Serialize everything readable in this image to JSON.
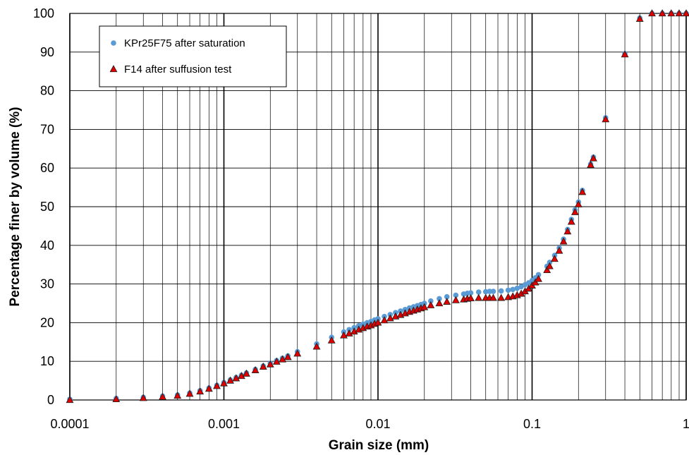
{
  "colors": {
    "series1": "#5b9bd5",
    "series2_fill": "#e00000",
    "series2_stroke": "#1f1f1f",
    "grid_major": "#000000",
    "grid_minor": "#000000"
  },
  "chart_data": {
    "type": "scatter",
    "xlabel": "Grain size (mm)",
    "ylabel": "Percentage finer by volume (%)",
    "x_scale": "log",
    "xlim": [
      0.0001,
      1
    ],
    "ylim": [
      0,
      100
    ],
    "x_ticks": [
      0.0001,
      0.001,
      0.01,
      0.1,
      1
    ],
    "x_tick_labels": [
      "0.0001",
      "0.001",
      "0.01",
      "0.1",
      "1"
    ],
    "y_ticks": [
      0,
      10,
      20,
      30,
      40,
      50,
      60,
      70,
      80,
      90,
      100
    ],
    "y_tick_labels": [
      "0",
      "10",
      "20",
      "30",
      "40",
      "50",
      "60",
      "70",
      "80",
      "90",
      "100"
    ],
    "grid": true,
    "legend_position": "top-left",
    "series": [
      {
        "name": "KPr25F75 after saturation",
        "marker": "circle",
        "points": [
          [
            0.0001,
            0.2
          ],
          [
            0.0002,
            0.4
          ],
          [
            0.0003,
            0.7
          ],
          [
            0.0004,
            1.0
          ],
          [
            0.0005,
            1.3
          ],
          [
            0.0006,
            1.8
          ],
          [
            0.0007,
            2.4
          ],
          [
            0.0008,
            3.1
          ],
          [
            0.0009,
            3.8
          ],
          [
            0.001,
            4.5
          ],
          [
            0.0011,
            5.2
          ],
          [
            0.0012,
            5.8
          ],
          [
            0.0013,
            6.4
          ],
          [
            0.0014,
            7.0
          ],
          [
            0.0016,
            7.9
          ],
          [
            0.0018,
            8.8
          ],
          [
            0.002,
            9.5
          ],
          [
            0.0022,
            10.2
          ],
          [
            0.0024,
            10.8
          ],
          [
            0.0026,
            11.4
          ],
          [
            0.003,
            12.5
          ],
          [
            0.004,
            14.5
          ],
          [
            0.005,
            16.2
          ],
          [
            0.006,
            17.6
          ],
          [
            0.0065,
            18.2
          ],
          [
            0.007,
            18.7
          ],
          [
            0.0075,
            19.2
          ],
          [
            0.008,
            19.6
          ],
          [
            0.0085,
            20.0
          ],
          [
            0.009,
            20.3
          ],
          [
            0.0095,
            20.7
          ],
          [
            0.01,
            21.0
          ],
          [
            0.011,
            21.6
          ],
          [
            0.012,
            22.1
          ],
          [
            0.013,
            22.6
          ],
          [
            0.014,
            23.0
          ],
          [
            0.015,
            23.4
          ],
          [
            0.016,
            23.8
          ],
          [
            0.017,
            24.1
          ],
          [
            0.018,
            24.4
          ],
          [
            0.019,
            24.7
          ],
          [
            0.02,
            25.0
          ],
          [
            0.022,
            25.6
          ],
          [
            0.025,
            26.2
          ],
          [
            0.028,
            26.7
          ],
          [
            0.032,
            27.1
          ],
          [
            0.036,
            27.4
          ],
          [
            0.038,
            27.6
          ],
          [
            0.04,
            27.7
          ],
          [
            0.045,
            27.9
          ],
          [
            0.05,
            28.0
          ],
          [
            0.053,
            28.1
          ],
          [
            0.056,
            28.1
          ],
          [
            0.063,
            28.2
          ],
          [
            0.07,
            28.4
          ],
          [
            0.075,
            28.6
          ],
          [
            0.08,
            28.9
          ],
          [
            0.085,
            29.3
          ],
          [
            0.09,
            29.8
          ],
          [
            0.095,
            30.3
          ],
          [
            0.1,
            30.9
          ],
          [
            0.105,
            31.6
          ],
          [
            0.11,
            32.4
          ],
          [
            0.125,
            34.6
          ],
          [
            0.13,
            35.6
          ],
          [
            0.14,
            37.4
          ],
          [
            0.15,
            39.3
          ],
          [
            0.16,
            41.6
          ],
          [
            0.17,
            44.1
          ],
          [
            0.18,
            46.7
          ],
          [
            0.19,
            49.2
          ],
          [
            0.2,
            51.2
          ],
          [
            0.212,
            54.2
          ],
          [
            0.24,
            61.0
          ],
          [
            0.25,
            62.8
          ],
          [
            0.3,
            73.0
          ],
          [
            0.4,
            89.6
          ],
          [
            0.5,
            98.8
          ],
          [
            0.6,
            100
          ],
          [
            0.7,
            100
          ],
          [
            0.8,
            100
          ],
          [
            0.9,
            100
          ],
          [
            1.0,
            100
          ]
        ]
      },
      {
        "name": "F14 after suffusion test",
        "marker": "triangle",
        "points": [
          [
            0.0001,
            0.0
          ],
          [
            0.0002,
            0.2
          ],
          [
            0.0003,
            0.5
          ],
          [
            0.0004,
            0.8
          ],
          [
            0.0005,
            1.1
          ],
          [
            0.0006,
            1.6
          ],
          [
            0.0007,
            2.2
          ],
          [
            0.0008,
            2.9
          ],
          [
            0.0009,
            3.6
          ],
          [
            0.001,
            4.3
          ],
          [
            0.0011,
            5.0
          ],
          [
            0.0012,
            5.6
          ],
          [
            0.0013,
            6.2
          ],
          [
            0.0014,
            6.8
          ],
          [
            0.0016,
            7.7
          ],
          [
            0.0018,
            8.6
          ],
          [
            0.002,
            9.2
          ],
          [
            0.0022,
            9.9
          ],
          [
            0.0024,
            10.5
          ],
          [
            0.0026,
            11.1
          ],
          [
            0.003,
            12.0
          ],
          [
            0.004,
            13.8
          ],
          [
            0.005,
            15.4
          ],
          [
            0.006,
            16.7
          ],
          [
            0.0065,
            17.2
          ],
          [
            0.007,
            17.7
          ],
          [
            0.0075,
            18.2
          ],
          [
            0.008,
            18.6
          ],
          [
            0.0085,
            19.0
          ],
          [
            0.009,
            19.3
          ],
          [
            0.0095,
            19.7
          ],
          [
            0.01,
            20.0
          ],
          [
            0.011,
            20.6
          ],
          [
            0.012,
            21.1
          ],
          [
            0.013,
            21.6
          ],
          [
            0.014,
            22.0
          ],
          [
            0.015,
            22.4
          ],
          [
            0.016,
            22.8
          ],
          [
            0.017,
            23.1
          ],
          [
            0.018,
            23.4
          ],
          [
            0.019,
            23.7
          ],
          [
            0.02,
            24.0
          ],
          [
            0.022,
            24.5
          ],
          [
            0.025,
            25.0
          ],
          [
            0.028,
            25.4
          ],
          [
            0.032,
            25.8
          ],
          [
            0.036,
            26.0
          ],
          [
            0.038,
            26.2
          ],
          [
            0.04,
            26.3
          ],
          [
            0.045,
            26.4
          ],
          [
            0.05,
            26.4
          ],
          [
            0.053,
            26.4
          ],
          [
            0.056,
            26.4
          ],
          [
            0.063,
            26.4
          ],
          [
            0.07,
            26.6
          ],
          [
            0.075,
            26.8
          ],
          [
            0.08,
            27.1
          ],
          [
            0.085,
            27.5
          ],
          [
            0.09,
            28.1
          ],
          [
            0.095,
            28.8
          ],
          [
            0.1,
            29.6
          ],
          [
            0.105,
            30.4
          ],
          [
            0.11,
            31.3
          ],
          [
            0.125,
            33.6
          ],
          [
            0.13,
            34.6
          ],
          [
            0.14,
            36.5
          ],
          [
            0.15,
            38.6
          ],
          [
            0.16,
            41.0
          ],
          [
            0.17,
            43.6
          ],
          [
            0.18,
            46.1
          ],
          [
            0.19,
            48.6
          ],
          [
            0.2,
            50.6
          ],
          [
            0.212,
            53.8
          ],
          [
            0.24,
            60.8
          ],
          [
            0.25,
            62.5
          ],
          [
            0.3,
            72.6
          ],
          [
            0.4,
            89.4
          ],
          [
            0.5,
            98.6
          ],
          [
            0.6,
            100
          ],
          [
            0.7,
            100
          ],
          [
            0.8,
            100
          ],
          [
            0.9,
            100
          ],
          [
            1.0,
            100
          ]
        ]
      }
    ]
  }
}
